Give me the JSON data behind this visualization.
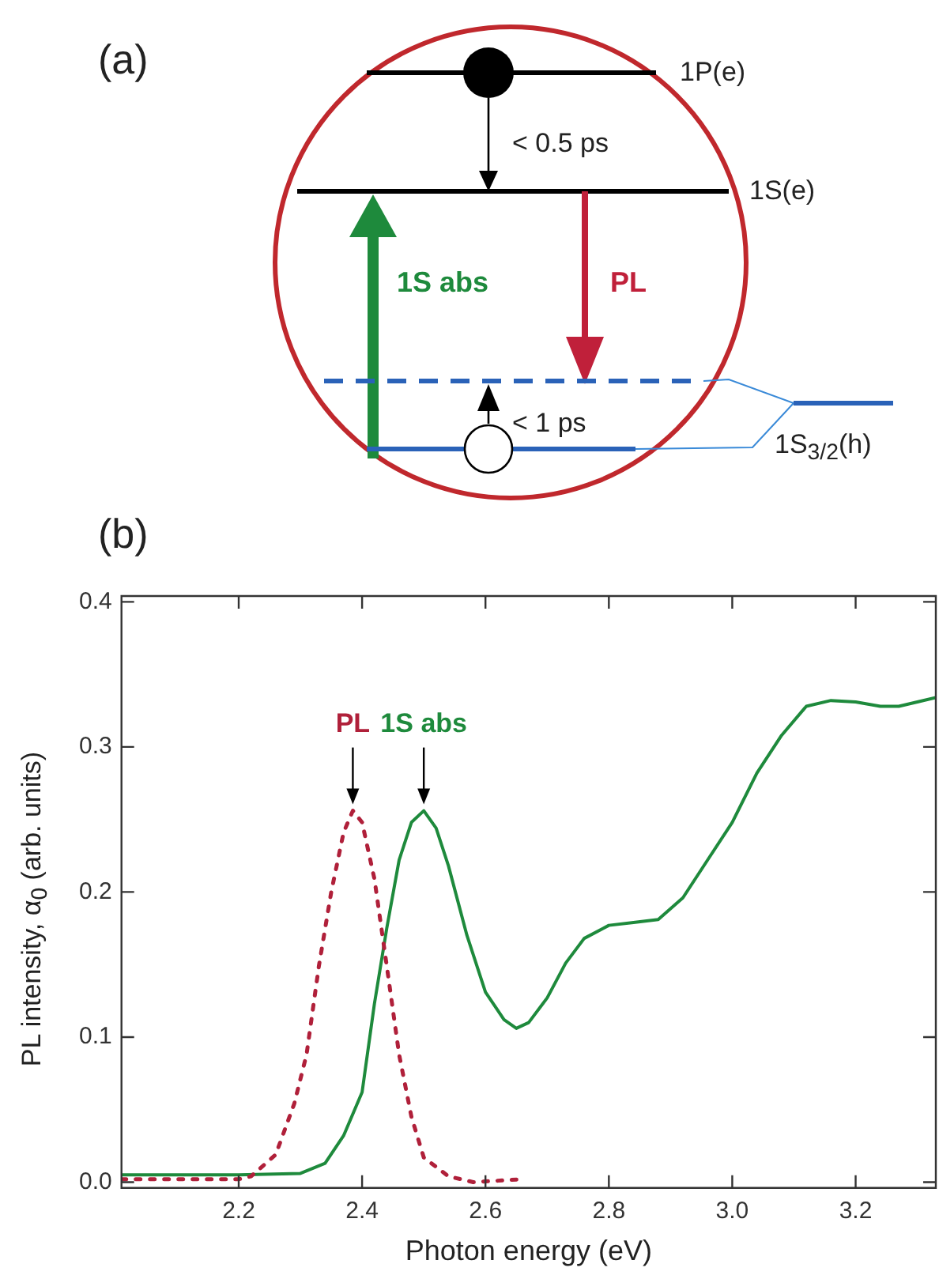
{
  "chart_data": {
    "type": "line",
    "xlabel": "Photon energy (eV)",
    "ylabel": "PL intensity, α$_{0}$ (arb. units)",
    "xlim": [
      2.01,
      3.33
    ],
    "ylim": [
      -0.004,
      0.404
    ],
    "xticks": [
      2.2,
      2.4,
      2.6,
      2.8,
      {
        "value": 3,
        "label": "3.0"
      },
      3.2
    ],
    "yticks": [
      {
        "value": 0,
        "label": "0.0"
      },
      0.1,
      0.2,
      0.3,
      0.4
    ],
    "grid": false,
    "legend": false,
    "marker": "none",
    "series": [
      {
        "color": "#b0203a",
        "line_style": "dotted",
        "x": [
          2.01,
          2.2,
          2.22,
          2.26,
          2.29,
          2.31,
          2.33,
          2.35,
          2.37,
          2.385,
          2.4,
          2.42,
          2.44,
          2.46,
          2.48,
          2.5,
          2.54,
          2.58,
          2.62,
          2.66
        ],
        "values": [
          0.002,
          0.002,
          0.004,
          0.019,
          0.054,
          0.088,
          0.149,
          0.2,
          0.241,
          0.256,
          0.248,
          0.209,
          0.149,
          0.088,
          0.045,
          0.017,
          0.004,
          0,
          0.001,
          0.002
        ]
      },
      {
        "color": "#1e8a3c",
        "line_style": "solid",
        "x": [
          2.01,
          2.2,
          2.3,
          2.34,
          2.37,
          2.4,
          2.42,
          2.44,
          2.46,
          2.48,
          2.5,
          2.52,
          2.54,
          2.57,
          2.6,
          2.63,
          2.65,
          2.67,
          2.7,
          2.73,
          2.76,
          2.8,
          2.84,
          2.88,
          2.92,
          2.96,
          3,
          3.04,
          3.08,
          3.12,
          3.16,
          3.2,
          3.24,
          3.27,
          3.3,
          3.33
        ],
        "values": [
          0.005,
          0.005,
          0.006,
          0.013,
          0.032,
          0.062,
          0.123,
          0.175,
          0.222,
          0.248,
          0.256,
          0.244,
          0.218,
          0.17,
          0.131,
          0.112,
          0.106,
          0.11,
          0.127,
          0.151,
          0.168,
          0.177,
          0.179,
          0.181,
          0.196,
          0.222,
          0.248,
          0.282,
          0.308,
          0.328,
          0.332,
          0.331,
          0.328,
          0.328,
          0.331,
          0.334
        ]
      }
    ],
    "annotations": [
      "(a)",
      "(b)",
      "1P(e)",
      "< 0.5 ps",
      "1S(e)",
      "1S abs",
      "PL",
      "< 1 ps",
      "1S$_{3/2}$(h)",
      {
        "text": "PL",
        "x": 2.385,
        "y": 0.256
      },
      {
        "text": "1S abs",
        "x": 2.5,
        "y": 0.256
      }
    ]
  }
}
